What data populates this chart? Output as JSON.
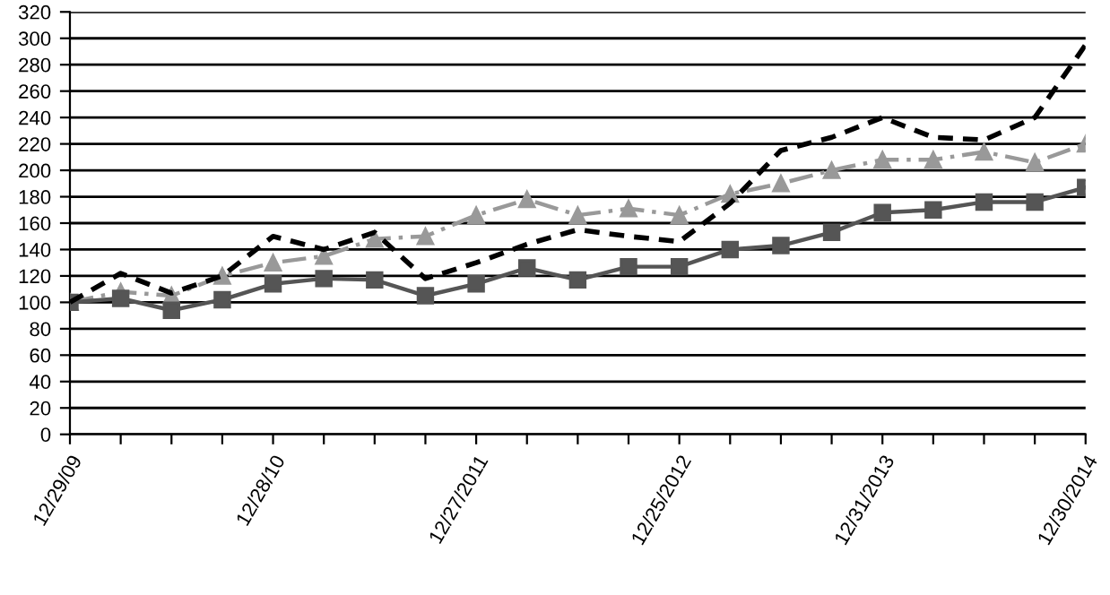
{
  "chart_data": {
    "type": "line",
    "categories": [
      "12/29/09",
      null,
      null,
      null,
      "12/28/10",
      null,
      null,
      null,
      "12/27/2011",
      null,
      null,
      null,
      "12/25/2012",
      null,
      null,
      null,
      "12/31/2013",
      null,
      null,
      null,
      "12/30/2014"
    ],
    "series": [
      {
        "color": "#000000",
        "line_style": "dashed",
        "marker": "none",
        "values": [
          100,
          122,
          107,
          120,
          150,
          140,
          153,
          118,
          130,
          144,
          155,
          150,
          146,
          175,
          215,
          225,
          240,
          225,
          223,
          240,
          295
        ]
      },
      {
        "color": "#555555",
        "line_style": "solid",
        "marker": "square",
        "values": [
          100,
          103,
          94,
          102,
          114,
          118,
          117,
          105,
          114,
          126,
          117,
          127,
          127,
          140,
          143,
          153,
          168,
          170,
          176,
          176,
          187
        ]
      },
      {
        "color": "#999999",
        "line_style": "dashdot",
        "marker": "triangle",
        "values": [
          100,
          108,
          105,
          120,
          130,
          135,
          148,
          150,
          166,
          178,
          166,
          171,
          166,
          182,
          190,
          200,
          208,
          208,
          214,
          206,
          220
        ]
      }
    ],
    "ylim": [
      0,
      320
    ],
    "yticks": [
      0,
      20,
      40,
      60,
      80,
      100,
      120,
      140,
      160,
      180,
      200,
      220,
      240,
      260,
      280,
      300,
      320
    ],
    "grid": "y"
  }
}
